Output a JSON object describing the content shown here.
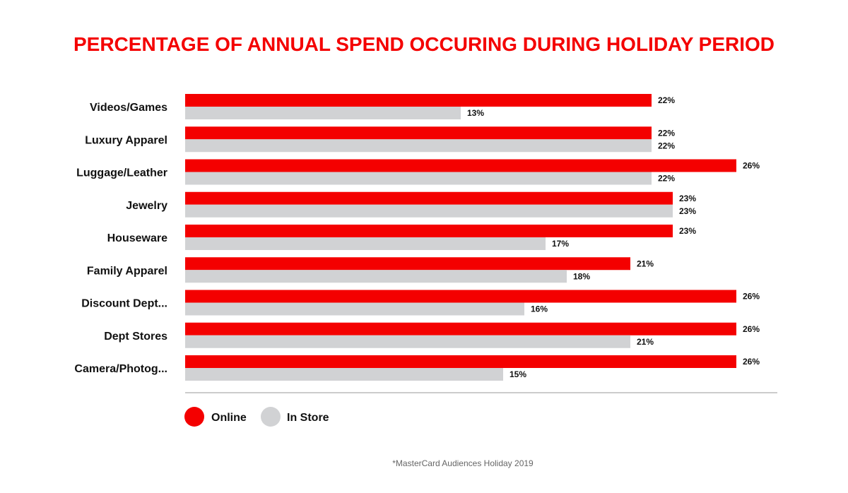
{
  "chart_data": {
    "type": "bar",
    "orientation": "horizontal",
    "title": "PERCENTAGE OF ANNUAL SPEND OCCURING DURING HOLIDAY PERIOD",
    "categories": [
      "Videos/Games",
      "Luxury Apparel",
      "Luggage/Leather",
      "Jewelry",
      "Houseware",
      "Family Apparel",
      "Discount Dept...",
      "Dept Stores",
      "Camera/Photog..."
    ],
    "series": [
      {
        "name": "Online",
        "color": "#f40000",
        "values": [
          22,
          22,
          26,
          23,
          23,
          21,
          26,
          26,
          26
        ]
      },
      {
        "name": "In Store",
        "color": "#d1d2d4",
        "values": [
          13,
          22,
          22,
          23,
          17,
          18,
          16,
          21,
          15
        ]
      }
    ],
    "value_suffix": "%",
    "xlim": [
      0,
      26
    ],
    "grid": false,
    "legend_placement": "bottom-left",
    "footnote": "*MasterCard Audiences Holiday 2019"
  },
  "colors": {
    "title": "#f40000",
    "axis": "#cccccc",
    "footnote": "#666666"
  }
}
